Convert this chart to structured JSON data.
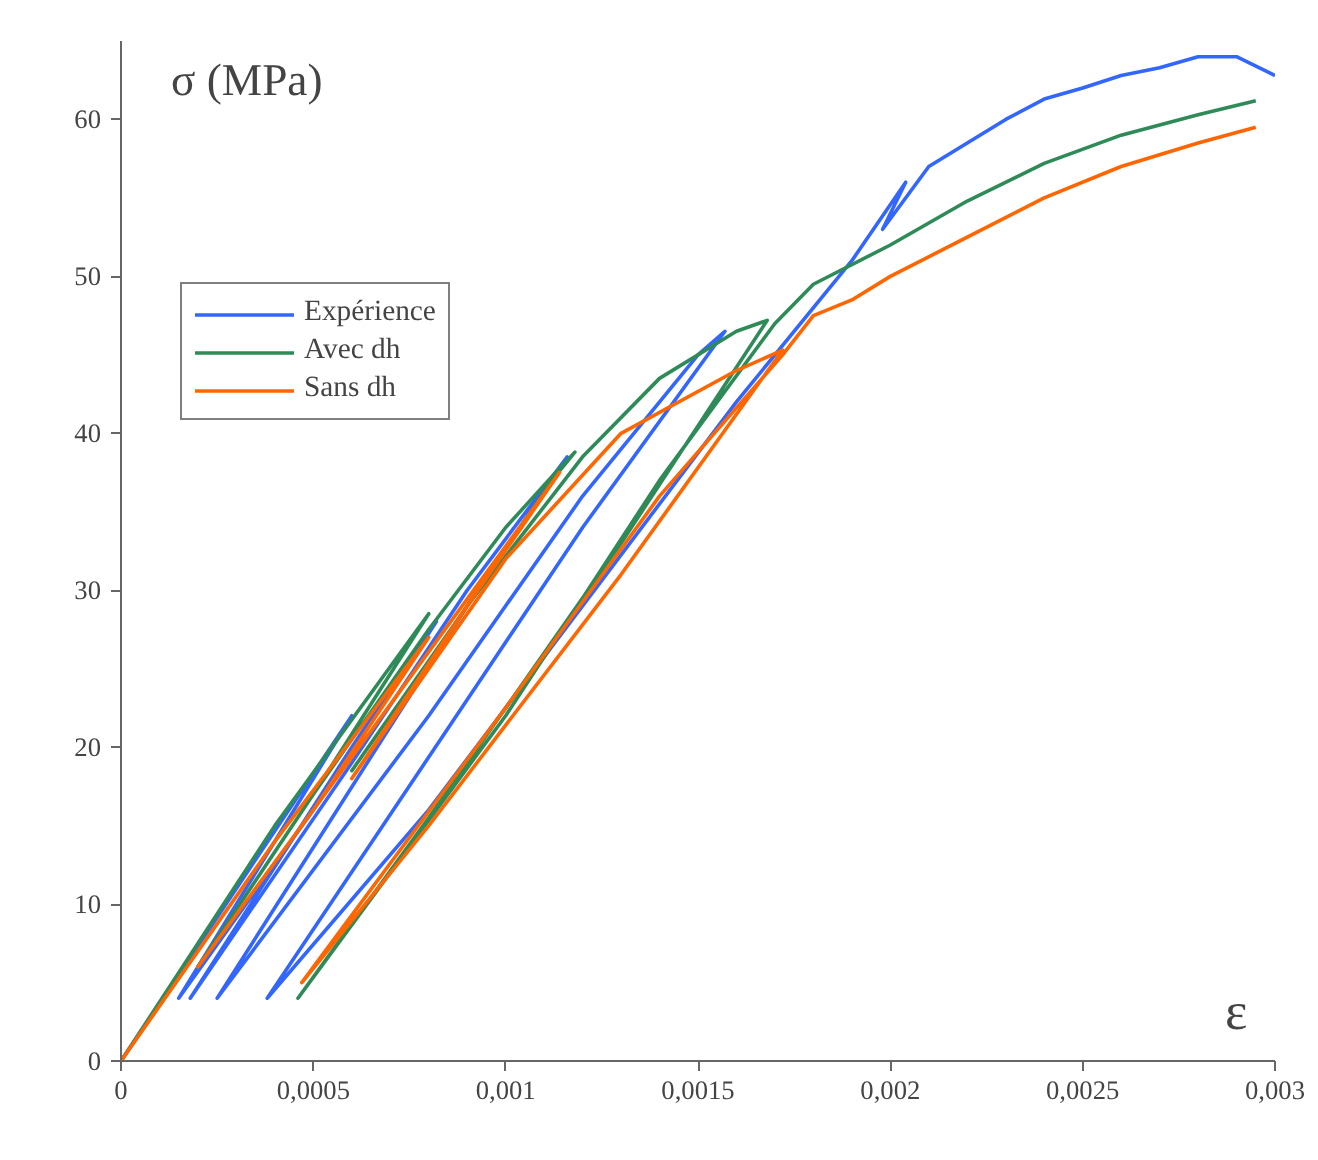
{
  "chart_data": {
    "type": "line",
    "xlabel": "ε",
    "ylabel": "σ (MPa)",
    "xlim": [
      0,
      0.003
    ],
    "ylim": [
      0,
      65
    ],
    "xticks": [
      {
        "value": 0,
        "label": "0"
      },
      {
        "value": 0.0005,
        "label": "0,0005"
      },
      {
        "value": 0.001,
        "label": "0,001"
      },
      {
        "value": 0.0015,
        "label": "0,0015"
      },
      {
        "value": 0.002,
        "label": "0,002"
      },
      {
        "value": 0.0025,
        "label": "0,0025"
      },
      {
        "value": 0.003,
        "label": "0,003"
      }
    ],
    "yticks": [
      0,
      10,
      20,
      30,
      40,
      50,
      60
    ],
    "grid": false,
    "legend": "top left",
    "line_style": "solid",
    "series": [
      {
        "name": "Expérience",
        "color": "#3366ff",
        "x": [
          0,
          0.0003,
          0.0006,
          0.0004,
          0.00015,
          0.0005,
          0.00082,
          0.0006,
          0.00018,
          0.0006,
          0.0009,
          0.00116,
          0.0009,
          0.00025,
          0.0008,
          0.0012,
          0.0015,
          0.00157,
          0.0012,
          0.00038,
          0.0008,
          0.0012,
          0.0016,
          0.0019,
          0.00204,
          0.00198,
          0.0021,
          0.0022,
          0.0023,
          0.0024,
          0.0025,
          0.0026,
          0.0027,
          0.0028,
          0.0029,
          0.003
        ],
        "values": [
          0,
          11,
          22,
          14,
          4,
          16,
          28,
          20,
          4,
          19,
          30,
          38.5,
          29,
          4,
          22,
          36,
          45,
          46.5,
          34,
          4,
          16,
          29,
          42,
          51,
          56,
          53,
          57,
          58.5,
          60,
          61.3,
          62,
          62.8,
          63.3,
          64,
          64,
          62.8
        ]
      },
      {
        "name": "Avec dh",
        "color": "#2e8b57",
        "x": [
          0,
          0.0004,
          0.0008,
          0.0005,
          0.0002,
          0.0005,
          0.0008,
          0.001,
          0.00113,
          0.00118,
          0.00112,
          0.0009,
          0.0006,
          0.0009,
          0.0012,
          0.0014,
          0.0016,
          0.00168,
          0.0013,
          0.0008,
          0.00046,
          0.001,
          0.0014,
          0.0017,
          0.0018,
          0.002,
          0.0022,
          0.0024,
          0.0026,
          0.0028,
          0.00295
        ],
        "values": [
          0,
          15,
          28.5,
          17,
          6,
          17,
          27.5,
          34,
          37.5,
          38.8,
          37,
          29,
          18.5,
          29,
          38.5,
          43.5,
          46.5,
          47.2,
          33,
          15.5,
          4,
          22,
          37,
          47,
          49.5,
          52,
          54.8,
          57.2,
          59,
          60.3,
          61.2
        ]
      },
      {
        "name": "Sans dh",
        "color": "#ff6600",
        "x": [
          0,
          0.0004,
          0.0008,
          0.0005,
          0.0002,
          0.0005,
          0.00114,
          0.0009,
          0.0006,
          0.001,
          0.0013,
          0.0016,
          0.00172,
          0.0013,
          0.0008,
          0.00047,
          0.001,
          0.0014,
          0.00172,
          0.0018,
          0.0019,
          0.002,
          0.0022,
          0.0024,
          0.0026,
          0.0028,
          0.00295
        ],
        "values": [
          0,
          14,
          27,
          16,
          6,
          16,
          37.5,
          29,
          18,
          32,
          40,
          44,
          45.3,
          31,
          15,
          5,
          22.5,
          36,
          45,
          47.5,
          48.5,
          50,
          52.5,
          55,
          57,
          58.5,
          59.5
        ]
      }
    ]
  }
}
